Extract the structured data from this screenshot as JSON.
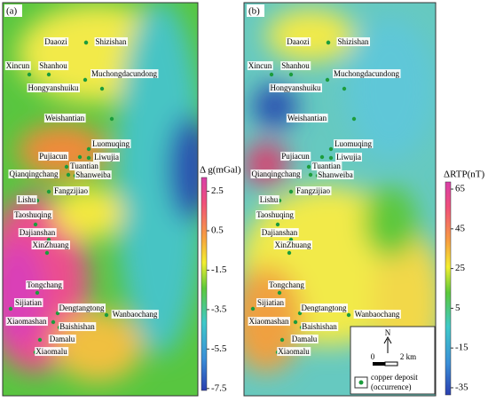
{
  "panels": [
    {
      "label": "(a)",
      "colorbar": {
        "title": "Δ g(mGal)",
        "ticks": [
          2.5,
          0.5,
          -1.5,
          -3.5,
          -5.5,
          -7.5
        ],
        "range": [
          -7.6,
          3.2
        ]
      }
    },
    {
      "label": "(b)",
      "colorbar": {
        "title": "ΔRTP(nT)",
        "ticks": [
          65,
          45,
          25,
          5,
          -15,
          -35
        ],
        "range": [
          -38.6,
          68.6
        ]
      }
    }
  ],
  "places": [
    "Daaozi",
    "Shizishan",
    "Xincun",
    "Shanhou",
    "Muchongdacundong",
    "Hongyanshuiku",
    "Weishantian",
    "Luomuqing",
    "Pujiacun",
    "Liwujia",
    "Tuantian",
    "Qianqingchang",
    "Shanweiba",
    "Fangzijiao",
    "Lishu",
    "Taoshuqing",
    "Dajianshan",
    "XinZhuang",
    "Tongchang",
    "Sijiatian",
    "Dengtangtong",
    "Wanbaochang",
    "Xiaomashan",
    "Baishishan",
    "Damalu",
    "Xiaomalu"
  ],
  "legend": {
    "north": "N",
    "scale_start": 0,
    "scale_end": "2 km",
    "label_1": "copper deposit",
    "label_2": "(occurrence)"
  }
}
